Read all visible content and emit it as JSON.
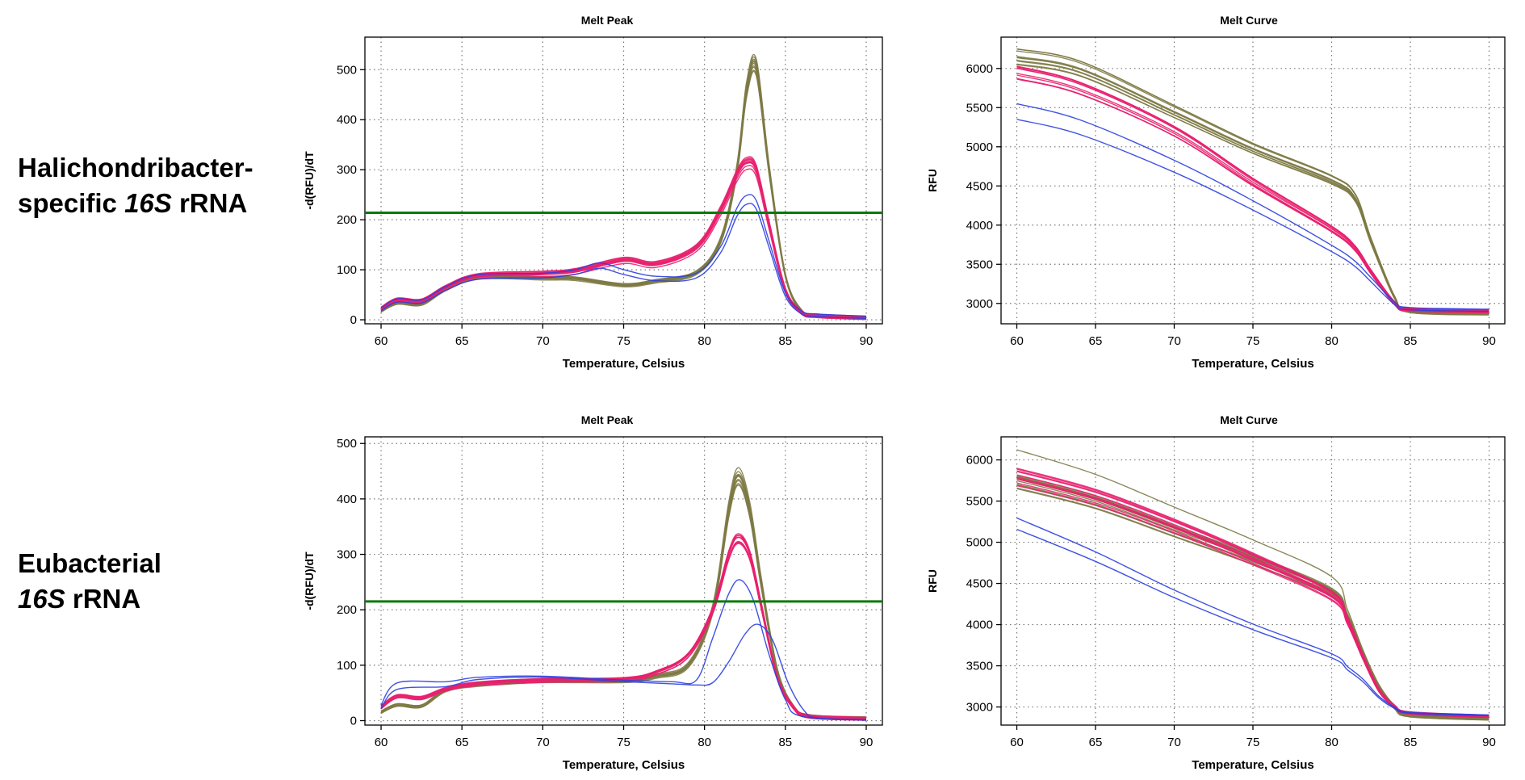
{
  "row_labels": [
    {
      "line1": "Halichondribacter-",
      "line2_prefix": "specific ",
      "line2_italic": "16S",
      "line2_suffix": " rRNA"
    },
    {
      "line1": "Eubacterial",
      "line2_prefix": "",
      "line2_italic": "16S",
      "line2_suffix": " rRNA"
    }
  ],
  "colors": {
    "olive": "#7d7a45",
    "pink": "#e8206e",
    "blue": "#2a3fe0",
    "threshold": "#0a7a0a"
  },
  "chart_data": [
    {
      "type": "line",
      "title": "Melt Peak",
      "xlabel": "Temperature, Celsius",
      "ylabel": "-d(RFU)/dT",
      "xlim": [
        59,
        91
      ],
      "ylim": [
        -8,
        565
      ],
      "xticks": [
        60,
        65,
        70,
        75,
        80,
        85,
        90
      ],
      "yticks": [
        0,
        100,
        200,
        300,
        400,
        500
      ],
      "grid": true,
      "threshold": 214,
      "series": [
        {
          "color": "olive",
          "count": 10,
          "x": [
            60,
            61,
            62.5,
            64,
            66,
            70,
            72,
            75,
            77,
            79.5,
            81,
            82,
            82.6,
            83.2,
            84,
            85,
            86,
            87,
            90
          ],
          "y": [
            18,
            34,
            32,
            62,
            86,
            84,
            83,
            70,
            78,
            95,
            160,
            300,
            460,
            505,
            300,
            90,
            18,
            8,
            4
          ]
        },
        {
          "color": "pink",
          "count": 10,
          "x": [
            60,
            61,
            62.5,
            64,
            66,
            70,
            72,
            75,
            77,
            79.5,
            81,
            82,
            82.6,
            83.2,
            84,
            85,
            86,
            87,
            90
          ],
          "y": [
            22,
            40,
            38,
            65,
            88,
            93,
            98,
            120,
            112,
            145,
            220,
            290,
            315,
            300,
            190,
            60,
            15,
            8,
            4
          ]
        },
        {
          "color": "blue",
          "count": 2,
          "x": [
            60,
            61,
            62.5,
            64,
            66,
            70,
            72,
            73.5,
            75,
            77,
            79.5,
            81,
            82,
            82.6,
            83.2,
            84,
            85,
            86,
            87,
            90
          ],
          "y": [
            20,
            38,
            36,
            62,
            85,
            88,
            95,
            108,
            95,
            82,
            88,
            140,
            215,
            240,
            230,
            150,
            50,
            14,
            8,
            4
          ]
        }
      ]
    },
    {
      "type": "line",
      "title": "Melt Curve",
      "xlabel": "Temperature, Celsius",
      "ylabel": "RFU",
      "xlim": [
        59,
        91
      ],
      "ylim": [
        2740,
        6400
      ],
      "xticks": [
        60,
        65,
        70,
        75,
        80,
        85,
        90
      ],
      "yticks": [
        3000,
        3500,
        4000,
        4500,
        5000,
        5500,
        6000
      ],
      "grid": true,
      "series": [
        {
          "color": "olive",
          "count": 10,
          "x": [
            60,
            64,
            70,
            75,
            80,
            81.5,
            82.5,
            84,
            85,
            90
          ],
          "y": [
            6150,
            6000,
            5450,
            4980,
            4580,
            4350,
            3800,
            3080,
            2900,
            2870
          ]
        },
        {
          "color": "pink",
          "count": 10,
          "x": [
            60,
            64,
            70,
            75,
            80,
            81.5,
            82.5,
            84,
            85,
            90
          ],
          "y": [
            5950,
            5750,
            5200,
            4550,
            3950,
            3700,
            3400,
            3000,
            2920,
            2900
          ]
        },
        {
          "color": "blue",
          "count": 2,
          "x": [
            60,
            64,
            70,
            75,
            80,
            81.5,
            82.5,
            84,
            85,
            90
          ],
          "y": [
            5450,
            5250,
            4750,
            4250,
            3700,
            3500,
            3300,
            3000,
            2930,
            2910
          ]
        }
      ]
    },
    {
      "type": "line",
      "title": "Melt Peak",
      "xlabel": "Temperature, Celsius",
      "ylabel": "-d(RFU)/dT",
      "xlim": [
        59,
        91
      ],
      "ylim": [
        -8,
        512
      ],
      "xticks": [
        60,
        65,
        70,
        75,
        80,
        85,
        90
      ],
      "yticks": [
        0,
        100,
        200,
        300,
        400,
        500
      ],
      "grid": true,
      "threshold": 215,
      "series": [
        {
          "color": "olive",
          "count": 10,
          "x": [
            60,
            61,
            62.5,
            64,
            66,
            70,
            75,
            77,
            79,
            80.5,
            81.5,
            82.1,
            82.8,
            83.5,
            84.5,
            85.5,
            86.5,
            90
          ],
          "y": [
            15,
            28,
            26,
            55,
            65,
            72,
            72,
            80,
            100,
            200,
            380,
            440,
            380,
            250,
            90,
            25,
            8,
            4
          ]
        },
        {
          "color": "pink",
          "count": 10,
          "x": [
            60,
            61,
            62.5,
            64,
            66,
            70,
            75,
            77,
            79,
            80.5,
            81.5,
            82.1,
            82.8,
            83.5,
            84.5,
            85.5,
            86.5,
            90
          ],
          "y": [
            25,
            45,
            42,
            58,
            68,
            74,
            76,
            88,
            120,
            200,
            300,
            330,
            300,
            210,
            80,
            25,
            8,
            4
          ]
        },
        {
          "color": "blue",
          "count": 1,
          "x": [
            60,
            61,
            64,
            66,
            70,
            75,
            78,
            79.5,
            80.5,
            81.5,
            82.2,
            83,
            84,
            85,
            86,
            90
          ],
          "y": [
            30,
            70,
            72,
            80,
            82,
            75,
            72,
            75,
            150,
            230,
            255,
            220,
            120,
            40,
            10,
            4
          ]
        },
        {
          "color": "blue",
          "count": 1,
          "x": [
            60,
            61,
            64,
            66,
            70,
            75,
            78,
            79.5,
            80.5,
            81.5,
            82.5,
            83.3,
            84.2,
            85.2,
            86.2,
            87,
            90
          ],
          "y": [
            25,
            60,
            65,
            78,
            82,
            74,
            70,
            68,
            72,
            110,
            160,
            178,
            150,
            70,
            20,
            8,
            4
          ]
        }
      ]
    },
    {
      "type": "line",
      "title": "Melt Curve",
      "xlabel": "Temperature, Celsius",
      "ylabel": "RFU",
      "xlim": [
        59,
        91
      ],
      "ylim": [
        2780,
        6280
      ],
      "xticks": [
        60,
        65,
        70,
        75,
        80,
        85,
        90
      ],
      "yticks": [
        3000,
        3500,
        4000,
        4500,
        5000,
        5500,
        6000
      ],
      "grid": true,
      "series": [
        {
          "color": "olive",
          "count": 10,
          "x": [
            60,
            65,
            70,
            75,
            80,
            81,
            82,
            83,
            84,
            85,
            90
          ],
          "y": [
            5750,
            5500,
            5150,
            4800,
            4400,
            4100,
            3650,
            3250,
            3000,
            2900,
            2860
          ]
        },
        {
          "color": "olive",
          "count": 1,
          "x": [
            60,
            65,
            70,
            75,
            80,
            81,
            82,
            83,
            84,
            85,
            90
          ],
          "y": [
            6150,
            5850,
            5450,
            5050,
            4600,
            4200,
            3700,
            3270,
            3000,
            2900,
            2860
          ]
        },
        {
          "color": "pink",
          "count": 10,
          "x": [
            60,
            65,
            70,
            75,
            80,
            81,
            82,
            83,
            84,
            85,
            90
          ],
          "y": [
            5800,
            5550,
            5200,
            4800,
            4350,
            4050,
            3600,
            3200,
            3000,
            2920,
            2880
          ]
        },
        {
          "color": "blue",
          "count": 2,
          "x": [
            60,
            65,
            70,
            75,
            80,
            81,
            82,
            83,
            84,
            85,
            90
          ],
          "y": [
            5200,
            4800,
            4350,
            3950,
            3600,
            3450,
            3300,
            3100,
            2970,
            2910,
            2880
          ]
        }
      ]
    }
  ]
}
